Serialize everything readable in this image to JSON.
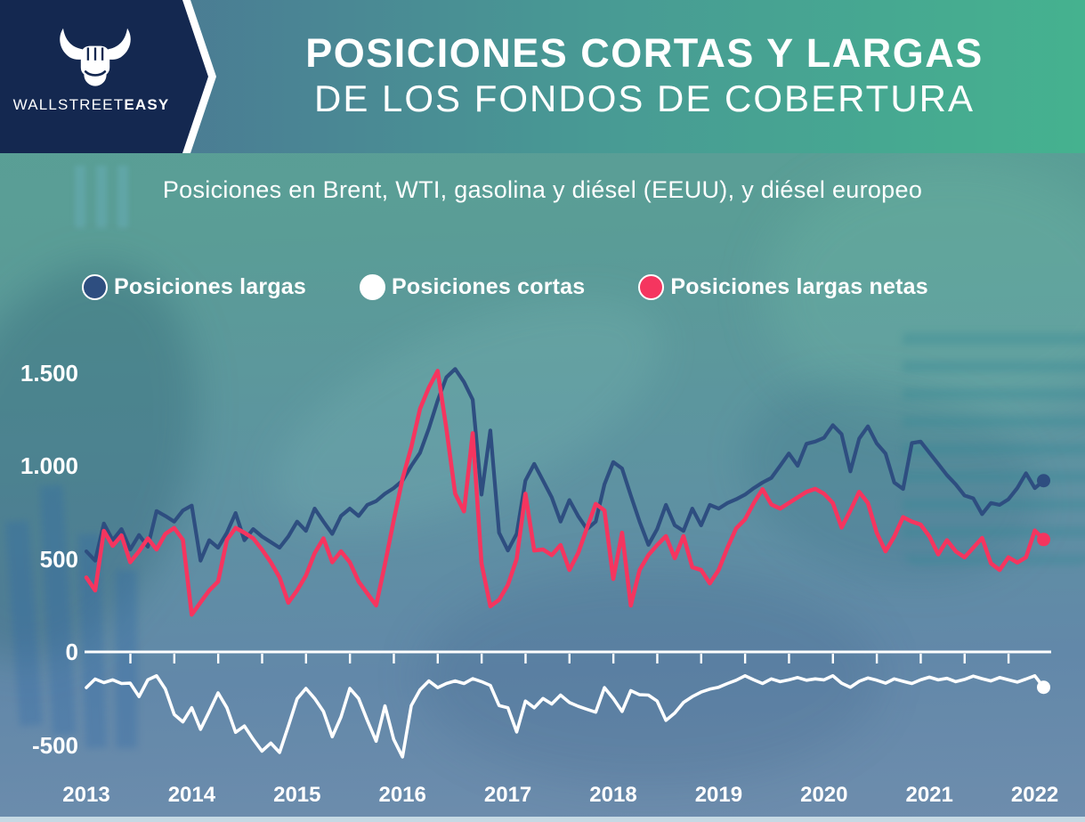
{
  "header": {
    "logo": {
      "brand_regular": "WALLSTREET",
      "brand_bold": "EASY"
    },
    "title_line1": "POSICIONES CORTAS Y LARGAS",
    "title_line2": "DE LOS FONDOS DE COBERTURA"
  },
  "subtitle": "Posiciones en Brent, WTI, gasolina y diésel (EEUU), y diésel europeo",
  "legend": [
    {
      "label": "Posiciones largas",
      "color": "#2e4e80"
    },
    {
      "label": "Posiciones cortas",
      "color": "#ffffff"
    },
    {
      "label": "Posiciones largas netas",
      "color": "#f5355f"
    }
  ],
  "colors": {
    "navy_panel": "#142850",
    "header_gradient_left": "#4c6f93",
    "header_gradient_right": "#45b28f",
    "axis": "#ffffff"
  },
  "chart_data": {
    "type": "line",
    "title": "POSICIONES CORTAS Y LARGAS DE LOS FONDOS DE COBERTURA",
    "subtitle": "Posiciones en Brent, WTI, gasolina y diésel (EEUU), y diésel europeo",
    "t0": 2013.0,
    "dt": 0.083333,
    "xlabels": [
      "2013",
      "2014",
      "2015",
      "2016",
      "2017",
      "2018",
      "2019",
      "2020",
      "2021",
      "2022"
    ],
    "ylabels": [
      "1.500",
      "1.000",
      "500",
      "0",
      "-500"
    ],
    "yticks": [
      1500,
      1000,
      500,
      0,
      -500
    ],
    "xlim": [
      2013.0,
      2022.15
    ],
    "ylim": [
      -700,
      1600
    ],
    "grid": false,
    "legend_position": "top",
    "series": [
      {
        "id": "largas",
        "name": "Posiciones largas",
        "color": "#2e4e80",
        "values": [
          540,
          490,
          690,
          600,
          660,
          550,
          628,
          565,
          757,
          730,
          700,
          760,
          786,
          490,
          600,
          560,
          640,
          746,
          600,
          660,
          620,
          590,
          560,
          620,
          700,
          650,
          770,
          700,
          634,
          730,
          770,
          730,
          790,
          810,
          850,
          880,
          920,
          1000,
          1070,
          1200,
          1350,
          1475,
          1520,
          1450,
          1355,
          845,
          1190,
          640,
          545,
          635,
          920,
          1010,
          920,
          830,
          700,
          816,
          730,
          660,
          700,
          900,
          1020,
          985,
          840,
          700,
          575,
          660,
          790,
          680,
          650,
          770,
          680,
          790,
          770,
          800,
          820,
          845,
          880,
          910,
          935,
          1000,
          1066,
          1000,
          1118,
          1130,
          1150,
          1218,
          1170,
          970,
          1146,
          1212,
          1120,
          1066,
          910,
          875,
          1122,
          1130,
          1070,
          1010,
          950,
          900,
          840,
          825,
          740,
          800,
          790,
          820,
          880,
          960,
          880,
          920
        ]
      },
      {
        "id": "cortas",
        "name": "Posiciones cortas",
        "color": "#ffffff",
        "values": [
          -192,
          -146,
          -165,
          -150,
          -170,
          -168,
          -240,
          -150,
          -128,
          -200,
          -336,
          -376,
          -300,
          -416,
          -320,
          -220,
          -300,
          -432,
          -398,
          -470,
          -533,
          -490,
          -540,
          -400,
          -252,
          -196,
          -250,
          -320,
          -456,
          -350,
          -196,
          -250,
          -368,
          -480,
          -290,
          -470,
          -564,
          -288,
          -204,
          -156,
          -192,
          -170,
          -156,
          -170,
          -144,
          -160,
          -180,
          -288,
          -300,
          -430,
          -264,
          -300,
          -250,
          -280,
          -232,
          -272,
          -292,
          -308,
          -324,
          -192,
          -250,
          -320,
          -208,
          -230,
          -232,
          -264,
          -368,
          -328,
          -272,
          -240,
          -216,
          -200,
          -190,
          -170,
          -152,
          -128,
          -150,
          -170,
          -145,
          -160,
          -150,
          -138,
          -152,
          -145,
          -150,
          -128,
          -168,
          -190,
          -158,
          -140,
          -152,
          -168,
          -145,
          -158,
          -170,
          -150,
          -136,
          -150,
          -142,
          -160,
          -148,
          -130,
          -144,
          -156,
          -138,
          -150,
          -162,
          -146,
          -128,
          -190
        ]
      },
      {
        "id": "largas-netas",
        "name": "Posiciones largas netas",
        "color": "#f5355f",
        "values": [
          400,
          330,
          650,
          570,
          626,
          482,
          540,
          610,
          550,
          634,
          666,
          602,
          200,
          266,
          330,
          378,
          602,
          666,
          640,
          610,
          550,
          482,
          400,
          264,
          330,
          410,
          530,
          610,
          482,
          540,
          482,
          378,
          314,
          250,
          472,
          706,
          930,
          1100,
          1306,
          1420,
          1510,
          1200,
          850,
          755,
          1175,
          475,
          245,
          280,
          360,
          500,
          850,
          545,
          550,
          520,
          574,
          440,
          530,
          665,
          795,
          760,
          392,
          640,
          249,
          440,
          520,
          574,
          622,
          504,
          622,
          455,
          440,
          368,
          440,
          560,
          664,
          712,
          800,
          874,
          792,
          770,
          800,
          830,
          860,
          876,
          850,
          800,
          668,
          760,
          860,
          800,
          640,
          540,
          620,
          724,
          700,
          684,
          620,
          524,
          600,
          540,
          508,
          560,
          612,
          476,
          440,
          508,
          480,
          508,
          652,
          604
        ]
      }
    ]
  }
}
